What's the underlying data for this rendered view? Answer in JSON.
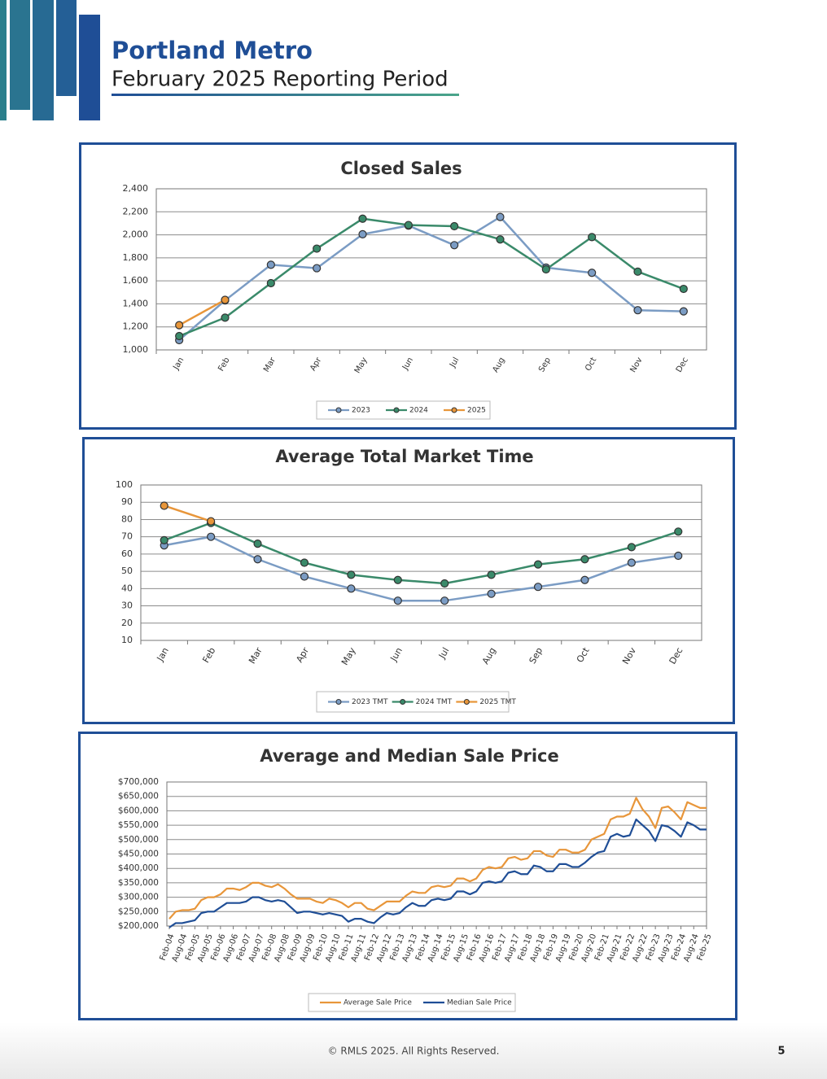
{
  "header": {
    "title": "Portland Metro",
    "subtitle": "February 2025 Reporting Period"
  },
  "chart_data": [
    {
      "type": "line",
      "title": "Closed Sales",
      "categories": [
        "Jan",
        "Feb",
        "Mar",
        "Apr",
        "May",
        "Jun",
        "Jul",
        "Aug",
        "Sep",
        "Oct",
        "Nov",
        "Dec"
      ],
      "series": [
        {
          "name": "2023",
          "color": "#7b9cc4",
          "values": [
            1085,
            1430,
            1740,
            1710,
            2005,
            2080,
            1910,
            2155,
            1715,
            1670,
            1345,
            1335
          ]
        },
        {
          "name": "2024",
          "color": "#3a8a6a",
          "values": [
            1120,
            1280,
            1580,
            1880,
            2140,
            2085,
            2075,
            1960,
            1700,
            1980,
            1680,
            1530
          ]
        },
        {
          "name": "2025",
          "color": "#e8963a",
          "values": [
            1215,
            1435,
            null,
            null,
            null,
            null,
            null,
            null,
            null,
            null,
            null,
            null
          ]
        }
      ],
      "ylim": [
        1000,
        2400
      ],
      "yticks": [
        {
          "value": 1000,
          "label": "1,000"
        },
        {
          "value": 1200,
          "label": "1,200"
        },
        {
          "value": 1400,
          "label": "1,400"
        },
        {
          "value": 1600,
          "label": "1,600"
        },
        {
          "value": 1800,
          "label": "1,800"
        },
        {
          "value": 2000,
          "label": "2,000"
        },
        {
          "value": 2200,
          "label": "2,200"
        },
        {
          "value": 2400,
          "label": "2,400"
        }
      ],
      "grid": true,
      "legend": "bottom"
    },
    {
      "type": "line",
      "title": "Average Total Market Time",
      "categories": [
        "Jan",
        "Feb",
        "Mar",
        "Apr",
        "May",
        "Jun",
        "Jul",
        "Aug",
        "Sep",
        "Oct",
        "Nov",
        "Dec"
      ],
      "series": [
        {
          "name": "2023 TMT",
          "color": "#7b9cc4",
          "values": [
            65,
            70,
            57,
            47,
            40,
            33,
            33,
            37,
            41,
            45,
            55,
            59
          ]
        },
        {
          "name": "2024 TMT",
          "color": "#3a8a6a",
          "values": [
            68,
            78,
            66,
            55,
            48,
            45,
            43,
            48,
            54,
            57,
            64,
            73
          ]
        },
        {
          "name": "2025 TMT",
          "color": "#e8963a",
          "values": [
            88,
            79,
            null,
            null,
            null,
            null,
            null,
            null,
            null,
            null,
            null,
            null
          ]
        }
      ],
      "ylim": [
        10,
        100
      ],
      "yticks": [
        10,
        20,
        30,
        40,
        50,
        60,
        70,
        80,
        90,
        100
      ],
      "grid": true,
      "legend": "bottom"
    },
    {
      "type": "line",
      "title": "Average and Median Sale Price",
      "categories": [
        "Feb-04",
        null,
        "Aug-04",
        null,
        "Feb-05",
        null,
        "Aug-05",
        null,
        "Feb-06",
        null,
        "Aug-06",
        null,
        "Feb-07",
        null,
        "Aug-07",
        null,
        "Feb-08",
        null,
        "Aug-08",
        null,
        "Feb-09",
        null,
        "Aug-09",
        null,
        "Feb-10",
        null,
        "Aug-10",
        null,
        "Feb-11",
        null,
        "Aug-11",
        null,
        "Feb-12",
        null,
        "Aug-12",
        null,
        "Feb-13",
        null,
        "Aug-13",
        null,
        "Feb-14",
        null,
        "Aug-14",
        null,
        "Feb-15",
        null,
        "Aug-15",
        null,
        "Feb-16",
        null,
        "Aug-16",
        null,
        "Feb-17",
        null,
        "Aug-17",
        null,
        "Feb-18",
        null,
        "Aug-18",
        null,
        "Feb-19",
        null,
        "Aug-19",
        null,
        "Feb-20",
        null,
        "Aug-20",
        null,
        "Feb-21",
        null,
        "Aug-21",
        null,
        "Feb-22",
        null,
        "Aug-22",
        null,
        "Feb-23",
        null,
        "Aug-23",
        null,
        "Feb-24",
        null,
        "Aug-24",
        null,
        "Feb-25"
      ],
      "series": [
        {
          "name": "Average Sale Price",
          "color": "#e8963a",
          "values": [
            225000,
            250000,
            255000,
            255000,
            260000,
            290000,
            300000,
            300000,
            310000,
            330000,
            330000,
            325000,
            335000,
            350000,
            350000,
            340000,
            335000,
            345000,
            330000,
            310000,
            295000,
            295000,
            295000,
            285000,
            280000,
            295000,
            290000,
            280000,
            265000,
            280000,
            280000,
            260000,
            255000,
            270000,
            285000,
            285000,
            285000,
            305000,
            320000,
            315000,
            315000,
            335000,
            340000,
            335000,
            340000,
            365000,
            365000,
            355000,
            365000,
            395000,
            405000,
            400000,
            405000,
            435000,
            440000,
            430000,
            435000,
            460000,
            460000,
            445000,
            440000,
            465000,
            465000,
            455000,
            455000,
            465000,
            500000,
            510000,
            520000,
            570000,
            580000,
            580000,
            590000,
            645000,
            605000,
            580000,
            540000,
            610000,
            615000,
            595000,
            570000,
            630000,
            620000,
            610000,
            610000
          ]
        },
        {
          "name": "Median Sale Price",
          "color": "#1f4e96",
          "values": [
            195000,
            210000,
            210000,
            215000,
            220000,
            245000,
            250000,
            250000,
            265000,
            280000,
            280000,
            280000,
            285000,
            300000,
            300000,
            290000,
            285000,
            290000,
            285000,
            265000,
            245000,
            250000,
            250000,
            245000,
            240000,
            245000,
            240000,
            235000,
            215000,
            225000,
            225000,
            215000,
            210000,
            230000,
            245000,
            240000,
            245000,
            265000,
            280000,
            270000,
            270000,
            290000,
            295000,
            290000,
            295000,
            320000,
            320000,
            310000,
            320000,
            350000,
            355000,
            350000,
            355000,
            385000,
            390000,
            380000,
            380000,
            410000,
            405000,
            390000,
            390000,
            415000,
            415000,
            405000,
            405000,
            420000,
            440000,
            455000,
            460000,
            510000,
            520000,
            510000,
            515000,
            570000,
            550000,
            530000,
            495000,
            550000,
            545000,
            530000,
            510000,
            560000,
            550000,
            535000,
            535000
          ]
        }
      ],
      "ylim": [
        200000,
        700000
      ],
      "yticks": [
        {
          "value": 200000,
          "label": "$200,000"
        },
        {
          "value": 250000,
          "label": "$250,000"
        },
        {
          "value": 300000,
          "label": "$300,000"
        },
        {
          "value": 350000,
          "label": "$350,000"
        },
        {
          "value": 400000,
          "label": "$400,000"
        },
        {
          "value": 450000,
          "label": "$450,000"
        },
        {
          "value": 500000,
          "label": "$500,000"
        },
        {
          "value": 550000,
          "label": "$550,000"
        },
        {
          "value": 600000,
          "label": "$600,000"
        },
        {
          "value": 650000,
          "label": "$650,000"
        },
        {
          "value": 700000,
          "label": "$700,000"
        }
      ],
      "grid": true,
      "legend": "bottom"
    }
  ],
  "footer": {
    "copyright": "© RMLS 2025. All Rights Reserved.",
    "page": "5"
  }
}
